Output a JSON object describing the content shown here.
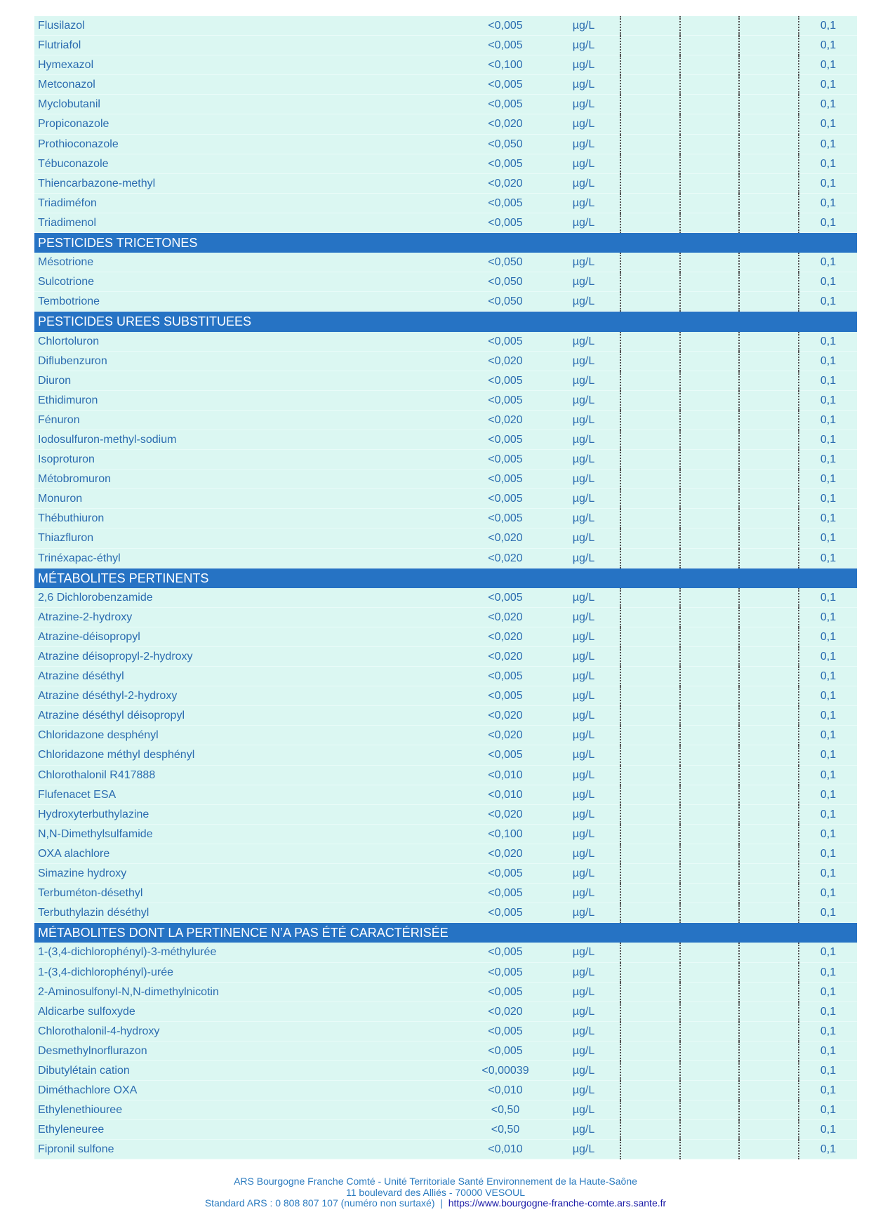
{
  "colors": {
    "row_bg": "#dbf7f2",
    "section_bg": "#2673c4",
    "text": "#2b6cb0"
  },
  "sections": [
    {
      "title": null,
      "rows": [
        [
          "Flusilazol",
          "<0,005",
          "µg/L",
          "0,1"
        ],
        [
          "Flutriafol",
          "<0,005",
          "µg/L",
          "0,1"
        ],
        [
          "Hymexazol",
          "<0,100",
          "µg/L",
          "0,1"
        ],
        [
          "Metconazol",
          "<0,005",
          "µg/L",
          "0,1"
        ],
        [
          "Myclobutanil",
          "<0,005",
          "µg/L",
          "0,1"
        ],
        [
          "Propiconazole",
          "<0,020",
          "µg/L",
          "0,1"
        ],
        [
          "Prothioconazole",
          "<0,050",
          "µg/L",
          "0,1"
        ],
        [
          "Tébuconazole",
          "<0,005",
          "µg/L",
          "0,1"
        ],
        [
          "Thiencarbazone-methyl",
          "<0,020",
          "µg/L",
          "0,1"
        ],
        [
          "Triadiméfon",
          "<0,005",
          "µg/L",
          "0,1"
        ],
        [
          "Triadimenol",
          "<0,005",
          "µg/L",
          "0,1"
        ]
      ]
    },
    {
      "title": "PESTICIDES TRICETONES",
      "rows": [
        [
          "Mésotrione",
          "<0,050",
          "µg/L",
          "0,1"
        ],
        [
          "Sulcotrione",
          "<0,050",
          "µg/L",
          "0,1"
        ],
        [
          "Tembotrione",
          "<0,050",
          "µg/L",
          "0,1"
        ]
      ]
    },
    {
      "title": "PESTICIDES UREES SUBSTITUEES",
      "rows": [
        [
          "Chlortoluron",
          "<0,005",
          "µg/L",
          "0,1"
        ],
        [
          "Diflubenzuron",
          "<0,020",
          "µg/L",
          "0,1"
        ],
        [
          "Diuron",
          "<0,005",
          "µg/L",
          "0,1"
        ],
        [
          "Ethidimuron",
          "<0,005",
          "µg/L",
          "0,1"
        ],
        [
          "Fénuron",
          "<0,020",
          "µg/L",
          "0,1"
        ],
        [
          "Iodosulfuron-methyl-sodium",
          "<0,005",
          "µg/L",
          "0,1"
        ],
        [
          "Isoproturon",
          "<0,005",
          "µg/L",
          "0,1"
        ],
        [
          "Métobromuron",
          "<0,005",
          "µg/L",
          "0,1"
        ],
        [
          "Monuron",
          "<0,005",
          "µg/L",
          "0,1"
        ],
        [
          "Thébuthiuron",
          "<0,005",
          "µg/L",
          "0,1"
        ],
        [
          "Thiazfluron",
          "<0,020",
          "µg/L",
          "0,1"
        ],
        [
          "Trinéxapac-éthyl",
          "<0,020",
          "µg/L",
          "0,1"
        ]
      ]
    },
    {
      "title": "MÉTABOLITES PERTINENTS",
      "rows": [
        [
          "2,6 Dichlorobenzamide",
          "<0,005",
          "µg/L",
          "0,1"
        ],
        [
          "Atrazine-2-hydroxy",
          "<0,020",
          "µg/L",
          "0,1"
        ],
        [
          "Atrazine-déisopropyl",
          "<0,020",
          "µg/L",
          "0,1"
        ],
        [
          "Atrazine déisopropyl-2-hydroxy",
          "<0,020",
          "µg/L",
          "0,1"
        ],
        [
          "Atrazine déséthyl",
          "<0,005",
          "µg/L",
          "0,1"
        ],
        [
          "Atrazine déséthyl-2-hydroxy",
          "<0,005",
          "µg/L",
          "0,1"
        ],
        [
          "Atrazine déséthyl déisopropyl",
          "<0,020",
          "µg/L",
          "0,1"
        ],
        [
          "Chloridazone desphényl",
          "<0,020",
          "µg/L",
          "0,1"
        ],
        [
          "Chloridazone méthyl desphényl",
          "<0,005",
          "µg/L",
          "0,1"
        ],
        [
          "Chlorothalonil R417888",
          "<0,010",
          "µg/L",
          "0,1"
        ],
        [
          "Flufenacet ESA",
          "<0,010",
          "µg/L",
          "0,1"
        ],
        [
          "Hydroxyterbuthylazine",
          "<0,020",
          "µg/L",
          "0,1"
        ],
        [
          "N,N-Dimethylsulfamide",
          "<0,100",
          "µg/L",
          "0,1"
        ],
        [
          "OXA alachlore",
          "<0,020",
          "µg/L",
          "0,1"
        ],
        [
          "Simazine hydroxy",
          "<0,005",
          "µg/L",
          "0,1"
        ],
        [
          "Terbuméton-désethyl",
          "<0,005",
          "µg/L",
          "0,1"
        ],
        [
          "Terbuthylazin déséthyl",
          "<0,005",
          "µg/L",
          "0,1"
        ]
      ]
    },
    {
      "title": "MÉTABOLITES DONT LA PERTINENCE N’A PAS ÉTÉ CARACTÉRISÉE",
      "rows": [
        [
          "1-(3,4-dichlorophényl)-3-méthylurée",
          "<0,005",
          "µg/L",
          "0,1"
        ],
        [
          "1-(3,4-dichlorophényl)-urée",
          "<0,005",
          "µg/L",
          "0,1"
        ],
        [
          "2-Aminosulfonyl-N,N-dimethylnicotin",
          "<0,005",
          "µg/L",
          "0,1"
        ],
        [
          "Aldicarbe sulfoxyde",
          "<0,020",
          "µg/L",
          "0,1"
        ],
        [
          "Chlorothalonil-4-hydroxy",
          "<0,005",
          "µg/L",
          "0,1"
        ],
        [
          "Desmethylnorflurazon",
          "<0,005",
          "µg/L",
          "0,1"
        ],
        [
          "Dibutylétain cation",
          "<0,00039",
          "µg/L",
          "0,1"
        ],
        [
          "Diméthachlore OXA",
          "<0,010",
          "µg/L",
          "0,1"
        ],
        [
          "Ethylenethiouree",
          "<0,50",
          "µg/L",
          "0,1"
        ],
        [
          "Ethyleneuree",
          "<0,50",
          "µg/L",
          "0,1"
        ],
        [
          "Fipronil sulfone",
          "<0,010",
          "µg/L",
          "0,1"
        ]
      ]
    }
  ],
  "footer": {
    "line1": "ARS Bourgogne Franche Comté - Unité Territoriale Santé Environnement de la Haute-Saône",
    "line2": "11 boulevard des Alliés - 70000 VESOUL",
    "line3": "Standard ARS : 0 808 807 107 (numéro non surtaxé)  |  ",
    "link": "https://www.bourgogne-franche-comte.ars.sante.fr"
  }
}
